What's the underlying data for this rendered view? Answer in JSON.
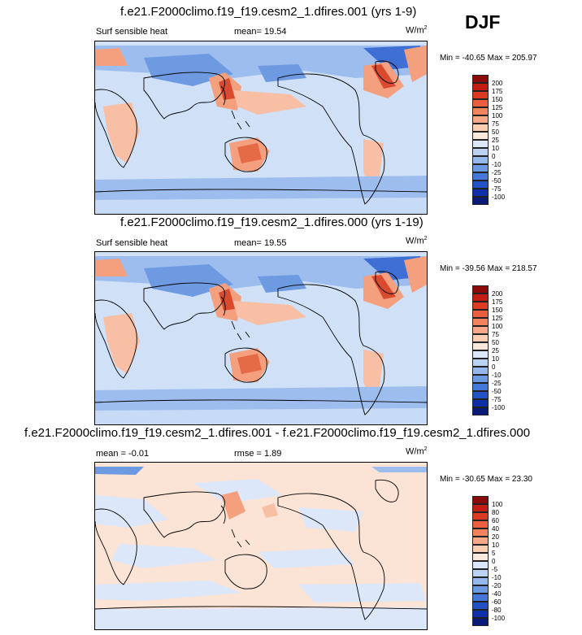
{
  "season": "DJF",
  "panels": [
    {
      "title": "f.e21.F2000climo.f19_f19.cesm2_1.dfires.001 (yrs 1-9)",
      "left_label": "Surf sensible heat",
      "center_label": "mean=  19.54",
      "unit": "W/m",
      "unit_sup": "2",
      "minmax": "Min = -40.65 Max = 205.97",
      "colorbar_labels": [
        "200",
        "175",
        "150",
        "125",
        "100",
        "75",
        "50",
        "25",
        "10",
        "0",
        "-10",
        "-25",
        "-50",
        "-75",
        "-100"
      ]
    },
    {
      "title": "f.e21.F2000climo.f19_f19.cesm2_1.dfires.000 (yrs 1-19)",
      "left_label": "Surf sensible heat",
      "center_label": "mean=  19.55",
      "unit": "W/m",
      "unit_sup": "2",
      "minmax": "Min = -39.56 Max = 218.57",
      "colorbar_labels": [
        "200",
        "175",
        "150",
        "125",
        "100",
        "75",
        "50",
        "25",
        "10",
        "0",
        "-10",
        "-25",
        "-50",
        "-75",
        "-100"
      ]
    },
    {
      "title": "f.e21.F2000climo.f19_f19.cesm2_1.dfires.001 - f.e21.F2000climo.f19_f19.cesm2_1.dfires.000",
      "left_label": "mean =  -0.01",
      "center_label": "rmse =   1.89",
      "unit": "W/m",
      "unit_sup": "2",
      "minmax": "Min = -30.65 Max =  23.30",
      "colorbar_labels": [
        "100",
        "80",
        "60",
        "40",
        "20",
        "10",
        "5",
        "0",
        "-5",
        "-10",
        "-20",
        "-40",
        "-60",
        "-80",
        "-100"
      ]
    }
  ],
  "colorbar_colors": [
    "#8c0a0a",
    "#c41e14",
    "#dc3c24",
    "#eb5e40",
    "#f3825f",
    "#f8a886",
    "#fbcdb1",
    "#fbe9dc",
    "#dce8f9",
    "#bcd2f3",
    "#94b8ec",
    "#6c9ae2",
    "#4578d8",
    "#2352c6",
    "#0f2fa8",
    "#0a1a78"
  ],
  "colors": {
    "ocean": "#cfe0f7",
    "warm": "#f4a07e",
    "hot": "#d94a2e",
    "cold": "#6d9ae0",
    "cool": "#9dbdee",
    "coast": "#000000"
  }
}
